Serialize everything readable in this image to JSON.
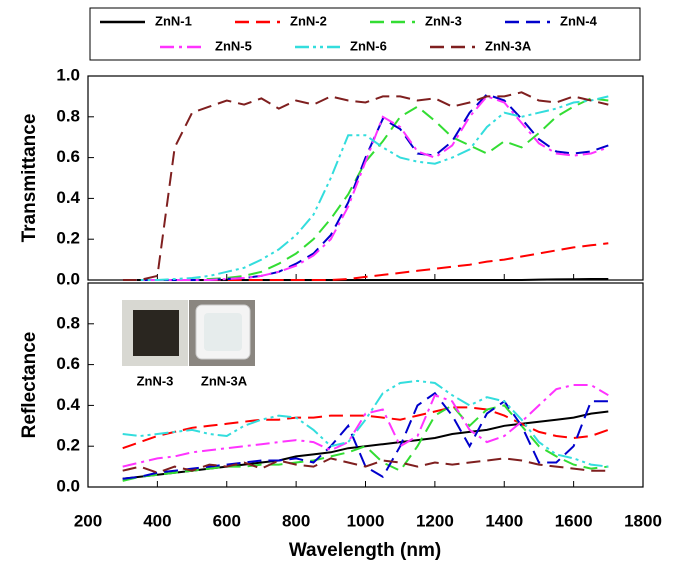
{
  "chart_data": [
    {
      "type": "line",
      "ylabel": "Transmittance",
      "x": [
        300,
        350,
        400,
        450,
        500,
        550,
        600,
        650,
        700,
        750,
        800,
        850,
        900,
        950,
        1000,
        1050,
        1100,
        1150,
        1200,
        1250,
        1300,
        1350,
        1400,
        1450,
        1500,
        1550,
        1600,
        1650,
        1700
      ],
      "xlim": [
        200,
        1800
      ],
      "ylim": [
        0,
        1.0
      ],
      "yticks": [
        {
          "value": 0,
          "label": "0.0"
        },
        0.2,
        0.4,
        0.6,
        0.8,
        {
          "value": 1.0,
          "label": "1.0"
        }
      ],
      "series": [
        {
          "name": "ZnN-1",
          "color": "#000000",
          "dash": "solid",
          "values": [
            0,
            0,
            0,
            0,
            0,
            0,
            0,
            0,
            0,
            0,
            0,
            0,
            0,
            0,
            0,
            0,
            0,
            0,
            0,
            0,
            0,
            0,
            0,
            0,
            0.002,
            0.003,
            0.004,
            0.005,
            0.005
          ]
        },
        {
          "name": "ZnN-2",
          "color": "#ff0000",
          "dash": "dash",
          "values": [
            0,
            0,
            0,
            0,
            0,
            0,
            0,
            0,
            0,
            0,
            0,
            0,
            0,
            0.005,
            0.015,
            0.025,
            0.035,
            0.045,
            0.055,
            0.065,
            0.075,
            0.09,
            0.1,
            0.115,
            0.13,
            0.145,
            0.16,
            0.17,
            0.18
          ]
        },
        {
          "name": "ZnN-3",
          "color": "#33dd33",
          "dash": "dash",
          "values": [
            0,
            0,
            0,
            0,
            0,
            0.005,
            0.01,
            0.02,
            0.04,
            0.08,
            0.13,
            0.2,
            0.3,
            0.42,
            0.58,
            0.68,
            0.8,
            0.85,
            0.78,
            0.7,
            0.66,
            0.62,
            0.68,
            0.65,
            0.72,
            0.8,
            0.85,
            0.89,
            0.88
          ]
        },
        {
          "name": "ZnN-4",
          "color": "#0000cc",
          "dash": "dash",
          "values": [
            0,
            0,
            0,
            0,
            0,
            0,
            0.005,
            0.01,
            0.02,
            0.04,
            0.08,
            0.13,
            0.22,
            0.38,
            0.6,
            0.79,
            0.74,
            0.62,
            0.61,
            0.68,
            0.82,
            0.91,
            0.88,
            0.79,
            0.69,
            0.63,
            0.62,
            0.63,
            0.66
          ]
        },
        {
          "name": "ZnN-5",
          "color": "#ff33ff",
          "dash": "dashdot",
          "values": [
            0,
            0,
            0,
            0,
            0,
            0,
            0.005,
            0.01,
            0.02,
            0.04,
            0.07,
            0.12,
            0.2,
            0.36,
            0.58,
            0.8,
            0.75,
            0.63,
            0.6,
            0.66,
            0.8,
            0.9,
            0.87,
            0.77,
            0.67,
            0.62,
            0.61,
            0.62,
            0.65
          ]
        },
        {
          "name": "ZnN-6",
          "color": "#33dddd",
          "dash": "dashdotdot",
          "values": [
            0,
            0,
            0,
            0.005,
            0.01,
            0.02,
            0.04,
            0.06,
            0.1,
            0.15,
            0.22,
            0.32,
            0.5,
            0.71,
            0.71,
            0.65,
            0.6,
            0.58,
            0.57,
            0.6,
            0.64,
            0.75,
            0.82,
            0.8,
            0.82,
            0.84,
            0.87,
            0.88,
            0.9
          ]
        },
        {
          "name": "ZnN-3A",
          "color": "#7f1f1f",
          "dash": "dash",
          "values": [
            0,
            0,
            0.02,
            0.65,
            0.82,
            0.85,
            0.88,
            0.86,
            0.89,
            0.84,
            0.88,
            0.86,
            0.9,
            0.88,
            0.87,
            0.9,
            0.9,
            0.88,
            0.89,
            0.85,
            0.87,
            0.9,
            0.9,
            0.92,
            0.88,
            0.87,
            0.9,
            0.88,
            0.86
          ]
        }
      ]
    },
    {
      "type": "line",
      "ylabel": "Reflectance",
      "xlabel": "Wavelength (nm)",
      "x": [
        300,
        350,
        400,
        450,
        500,
        550,
        600,
        650,
        700,
        750,
        800,
        850,
        900,
        950,
        1000,
        1050,
        1100,
        1150,
        1200,
        1250,
        1300,
        1350,
        1400,
        1450,
        1500,
        1550,
        1600,
        1650,
        1700
      ],
      "xlim": [
        200,
        1800
      ],
      "xticks": [
        200,
        400,
        600,
        800,
        1000,
        1200,
        1400,
        1600,
        1800
      ],
      "ylim": [
        0,
        1.0
      ],
      "yticks": [
        {
          "value": 0,
          "label": "0.0"
        },
        0.2,
        0.4,
        0.6,
        0.8
      ],
      "inset_labels": [
        "ZnN-3",
        "ZnN-3A"
      ],
      "series": [
        {
          "color": "#000000",
          "dash": "solid",
          "values": [
            0.04,
            0.05,
            0.06,
            0.07,
            0.08,
            0.09,
            0.1,
            0.11,
            0.12,
            0.13,
            0.15,
            0.16,
            0.17,
            0.19,
            0.2,
            0.21,
            0.22,
            0.23,
            0.24,
            0.26,
            0.27,
            0.28,
            0.3,
            0.31,
            0.32,
            0.33,
            0.34,
            0.36,
            0.37
          ]
        },
        {
          "color": "#ff0000",
          "dash": "dash",
          "values": [
            0.19,
            0.22,
            0.25,
            0.27,
            0.29,
            0.3,
            0.31,
            0.32,
            0.33,
            0.33,
            0.34,
            0.34,
            0.35,
            0.35,
            0.35,
            0.34,
            0.33,
            0.35,
            0.37,
            0.39,
            0.39,
            0.38,
            0.35,
            0.31,
            0.27,
            0.25,
            0.24,
            0.25,
            0.28
          ]
        },
        {
          "color": "#33dd33",
          "dash": "dash",
          "values": [
            0.03,
            0.05,
            0.06,
            0.07,
            0.08,
            0.09,
            0.1,
            0.1,
            0.11,
            0.11,
            0.12,
            0.13,
            0.15,
            0.17,
            0.2,
            0.12,
            0.08,
            0.2,
            0.35,
            0.4,
            0.3,
            0.38,
            0.4,
            0.3,
            0.2,
            0.15,
            0.11,
            0.09,
            0.1
          ]
        },
        {
          "color": "#0000cc",
          "dash": "dash",
          "values": [
            0.04,
            0.05,
            0.07,
            0.08,
            0.09,
            0.1,
            0.11,
            0.12,
            0.13,
            0.13,
            0.14,
            0.12,
            0.2,
            0.3,
            0.1,
            0.05,
            0.2,
            0.4,
            0.46,
            0.35,
            0.2,
            0.36,
            0.42,
            0.3,
            0.12,
            0.12,
            0.2,
            0.42,
            0.42
          ]
        },
        {
          "color": "#ff33ff",
          "dash": "dashdot",
          "values": [
            0.1,
            0.12,
            0.14,
            0.15,
            0.17,
            0.18,
            0.19,
            0.2,
            0.21,
            0.22,
            0.23,
            0.22,
            0.18,
            0.22,
            0.36,
            0.38,
            0.2,
            0.25,
            0.45,
            0.42,
            0.28,
            0.22,
            0.25,
            0.32,
            0.4,
            0.48,
            0.5,
            0.5,
            0.45
          ]
        },
        {
          "color": "#33dddd",
          "dash": "dashdotdot",
          "values": [
            0.26,
            0.25,
            0.26,
            0.27,
            0.28,
            0.26,
            0.25,
            0.3,
            0.33,
            0.35,
            0.34,
            0.28,
            0.2,
            0.22,
            0.33,
            0.46,
            0.51,
            0.52,
            0.51,
            0.45,
            0.4,
            0.44,
            0.42,
            0.33,
            0.22,
            0.16,
            0.14,
            0.11,
            0.1
          ]
        },
        {
          "color": "#7f1f1f",
          "dash": "dash",
          "values": [
            0.08,
            0.1,
            0.07,
            0.1,
            0.08,
            0.11,
            0.1,
            0.12,
            0.09,
            0.13,
            0.11,
            0.1,
            0.14,
            0.12,
            0.1,
            0.13,
            0.12,
            0.1,
            0.12,
            0.11,
            0.12,
            0.13,
            0.14,
            0.13,
            0.11,
            0.1,
            0.09,
            0.08,
            0.08
          ]
        }
      ]
    }
  ]
}
